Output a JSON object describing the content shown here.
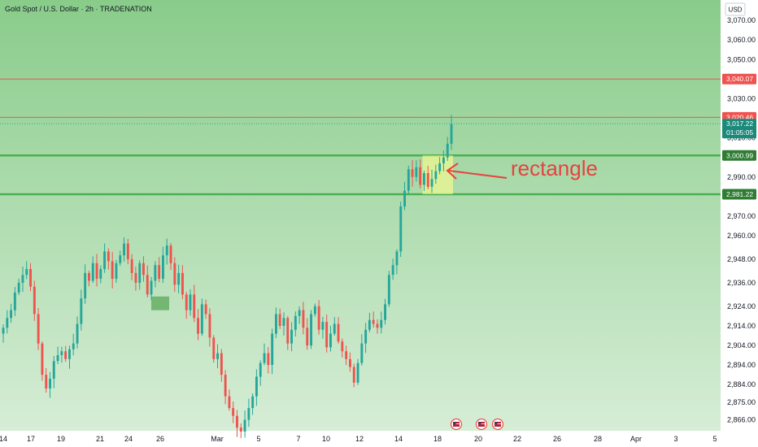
{
  "header": {
    "title": "Gold Spot / U.S. Dollar · 2h · TRADENATION",
    "currency_button": "USD"
  },
  "annotation": {
    "label": "rectangle"
  },
  "colors": {
    "bg_top": "#89cc8a",
    "bg_bottom": "#d6edd6",
    "up": "#26a69a",
    "down": "#ef5350",
    "support_line": "#4caf50",
    "resistance_line": "#ef5350",
    "rect_fill": "#ffff8c",
    "box_fill": "#5aa85a",
    "annotation": "#e84141"
  },
  "chart_data": {
    "type": "candlestick",
    "title": "Gold Spot / U.S. Dollar · 2h · TRADENATION",
    "currency": "USD",
    "ylim": [
      2860,
      3080
    ],
    "y_ticks": [
      "3,070.00",
      "3,060.00",
      "3,050.00",
      "3,030.00",
      "3,010.00",
      "2,990.00",
      "2,970.00",
      "2,960.00",
      "2,948.00",
      "2,936.00",
      "2,924.00",
      "2,914.00",
      "2,904.00",
      "2,894.00",
      "2,884.00",
      "2,875.00",
      "2,866.00"
    ],
    "x_ticks": [
      "14",
      "17",
      "19",
      "21",
      "24",
      "26",
      "Mar",
      "5",
      "7",
      "10",
      "12",
      "14",
      "18",
      "20",
      "22",
      "26",
      "28",
      "Apr",
      "3",
      "5"
    ],
    "price_tags": [
      {
        "label": "3,040.07",
        "kind": "resistance"
      },
      {
        "label": "3,020.46",
        "kind": "resistance"
      },
      {
        "label": "3,000.99",
        "kind": "support"
      },
      {
        "label": "2,981.22",
        "kind": "support"
      }
    ],
    "last_price": "3,017.22",
    "countdown": "01:05:05",
    "horizontal_levels": [
      3040.07,
      3020.46,
      3000.99,
      2981.22
    ],
    "series": [
      {
        "values": [
          2913,
          2918,
          2922,
          2931,
          2936,
          2940,
          2943,
          2934,
          2920,
          2905,
          2889,
          2882,
          2887,
          2896,
          2899,
          2901,
          2897,
          2902,
          2905,
          2915,
          2928,
          2941,
          2937,
          2946,
          2938,
          2943,
          2952,
          2947,
          2938,
          2946,
          2950,
          2956,
          2948,
          2941,
          2936,
          2946,
          2940,
          2930,
          2937,
          2945,
          2938,
          2950,
          2955,
          2946,
          2935,
          2941,
          2930,
          2922,
          2930,
          2918,
          2910,
          2925,
          2920,
          2908,
          2897,
          2900,
          2889,
          2878,
          2872,
          2868,
          2862,
          2860,
          2866,
          2872,
          2878,
          2888,
          2895,
          2900,
          2894,
          2910,
          2920,
          2914,
          2918,
          2905,
          2912,
          2919,
          2922,
          2913,
          2904,
          2920,
          2924,
          2912,
          2916,
          2903,
          2910,
          2915,
          2906,
          2901,
          2897,
          2893,
          2885,
          2895,
          2905,
          2912,
          2917,
          2915,
          2913,
          2917,
          2925,
          2940,
          2945,
          2952,
          2975,
          2983,
          2994,
          2990,
          2995,
          2986,
          2992,
          2985,
          2989,
          2993,
          2997,
          3000,
          3007,
          3017
        ]
      }
    ]
  },
  "events": [
    {
      "name": "us-flag-event-icon",
      "x_label": "18"
    },
    {
      "name": "us-flag-event-icon",
      "x_label": "20"
    },
    {
      "name": "us-flag-event-icon",
      "x_label": "20"
    }
  ]
}
